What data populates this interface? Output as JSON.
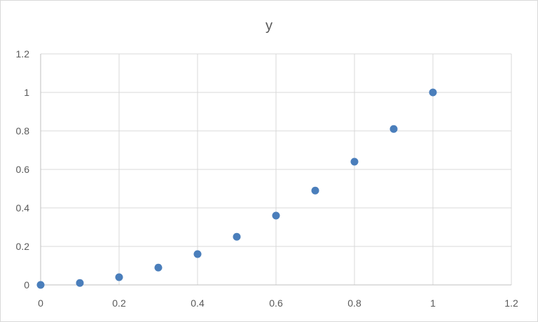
{
  "chart_data": {
    "type": "scatter",
    "title": "y",
    "xlabel": "",
    "ylabel": "",
    "xlim": [
      0,
      1.2
    ],
    "ylim": [
      0,
      1.2
    ],
    "x_ticks": [
      "0",
      "0.2",
      "0.4",
      "0.6",
      "0.8",
      "1",
      "1.2"
    ],
    "y_ticks": [
      "0",
      "0.2",
      "0.4",
      "0.6",
      "0.8",
      "1",
      "1.2"
    ],
    "grid": true,
    "legend": "none",
    "series": [
      {
        "color": "#4a7ebb",
        "points": [
          {
            "x": 0.0,
            "y": 0.0
          },
          {
            "x": 0.1,
            "y": 0.01
          },
          {
            "x": 0.2,
            "y": 0.04
          },
          {
            "x": 0.3,
            "y": 0.09
          },
          {
            "x": 0.4,
            "y": 0.16
          },
          {
            "x": 0.5,
            "y": 0.25
          },
          {
            "x": 0.6,
            "y": 0.36
          },
          {
            "x": 0.7,
            "y": 0.49
          },
          {
            "x": 0.8,
            "y": 0.64
          },
          {
            "x": 0.9,
            "y": 0.81
          },
          {
            "x": 1.0,
            "y": 1.0
          }
        ]
      }
    ]
  }
}
